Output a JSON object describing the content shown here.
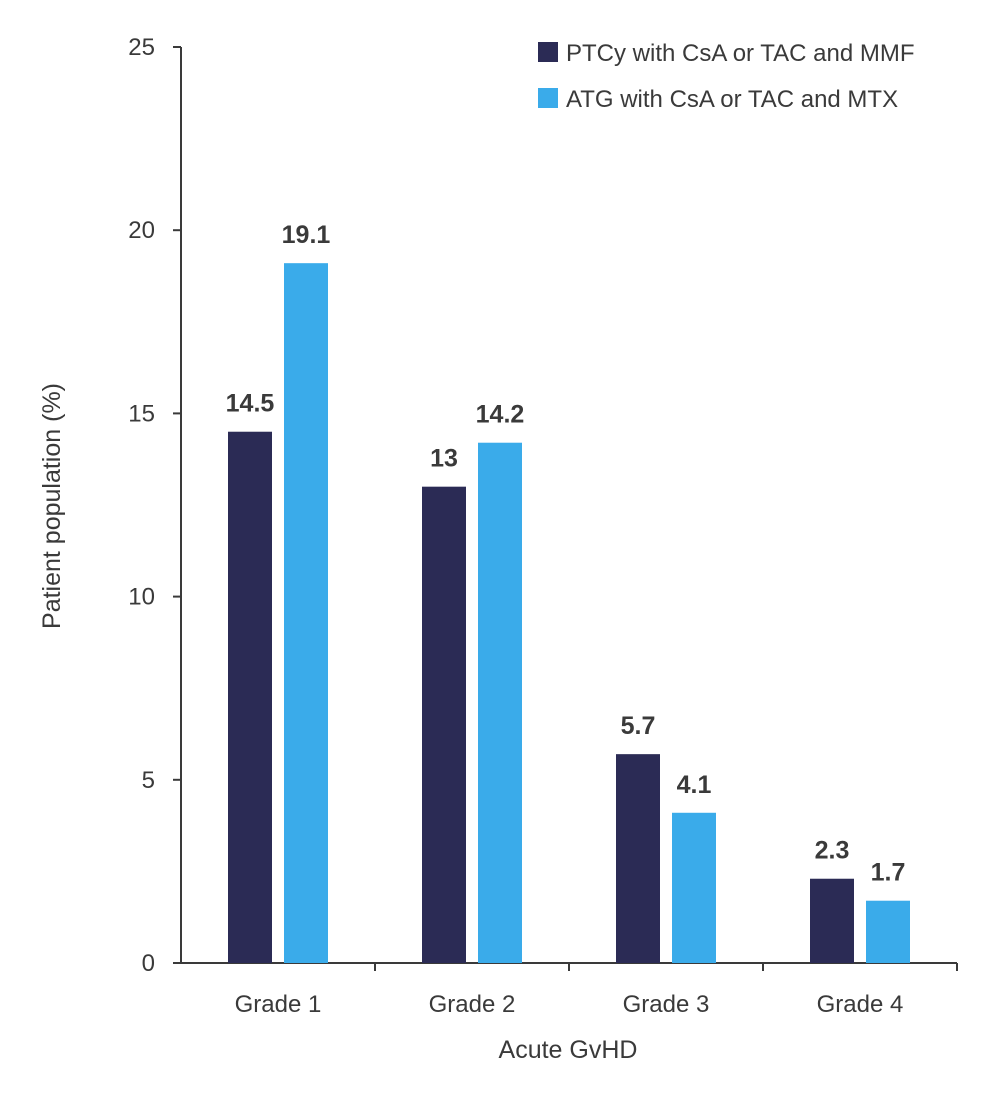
{
  "chart_data": {
    "type": "bar",
    "title": "",
    "xlabel": "Acute GvHD",
    "ylabel": "Patient population (%)",
    "ylim": [
      0,
      25
    ],
    "yticks": [
      0,
      5,
      10,
      15,
      20,
      25
    ],
    "categories": [
      "Grade 1",
      "Grade 2",
      "Grade 3",
      "Grade 4"
    ],
    "series": [
      {
        "name": "PTCy with CsA or TAC and MMF",
        "color": "#2b2b55",
        "values": [
          14.5,
          13,
          5.7,
          2.3
        ],
        "labels": [
          "14.5",
          "13",
          "5.7",
          "2.3"
        ]
      },
      {
        "name": "ATG with CsA or TAC and MTX",
        "color": "#3aabea",
        "values": [
          19.1,
          14.2,
          4.1,
          1.7
        ],
        "labels": [
          "19.1",
          "14.2",
          "4.1",
          "1.7"
        ]
      }
    ],
    "legend_position": "top-right",
    "grid": false
  }
}
